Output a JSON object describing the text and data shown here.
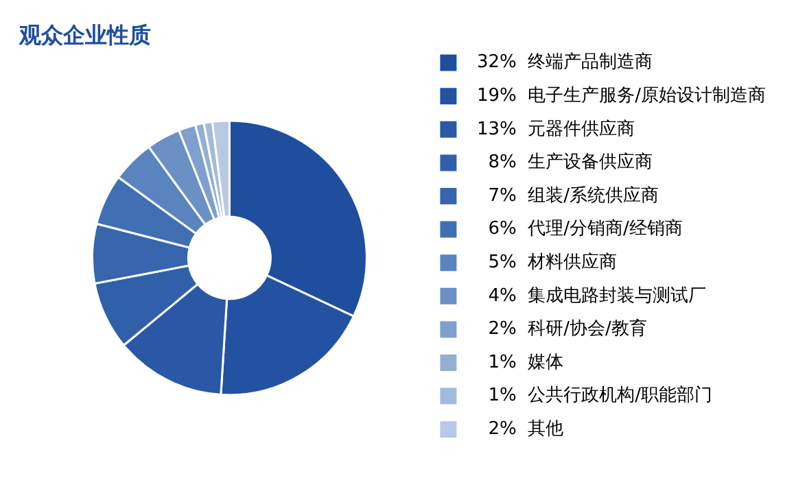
{
  "chart_data": {
    "type": "donut",
    "title": "观众企业性质",
    "categories": [
      "终端产品制造商",
      "电子生产服务/原始设计制造商",
      "元器件供应商",
      "生产设备供应商",
      "组装/系统供应商",
      "代理/分销商/经销商",
      "材料供应商",
      "集成电路封装与测试厂",
      "科研/协会/教育",
      "媒体",
      "公共行政机构/职能部门",
      "其他"
    ],
    "values": [
      32,
      19,
      13,
      8,
      7,
      6,
      5,
      4,
      2,
      1,
      1,
      2
    ],
    "value_labels": [
      "32%",
      "19%",
      "13%",
      "8%",
      "7%",
      "6%",
      "5%",
      "4%",
      "2%",
      "1%",
      "1%",
      "2%"
    ],
    "colors": [
      "#1f4e9f",
      "#2352a2",
      "#2a58a6",
      "#3060aa",
      "#3766ae",
      "#4070b3",
      "#5a84bf",
      "#6a90c5",
      "#7f9fcd",
      "#93afd5",
      "#a3bbdb",
      "#b7c9e4"
    ],
    "legend": "right"
  }
}
